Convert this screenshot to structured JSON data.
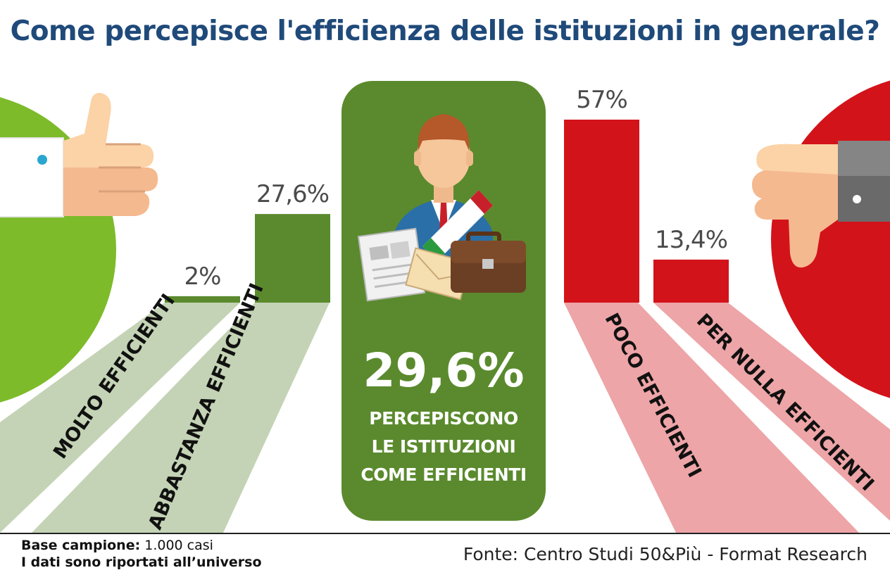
{
  "title": "Come percepisce l'efficienza delle istituzioni in generale?",
  "center": {
    "value": "29,6%",
    "line1": "PERCEPISCONO",
    "line2": "LE ISTITUZIONI",
    "line3": "COME EFFICIENTI"
  },
  "colors": {
    "green_dark": "#5a8a2d",
    "green_light": "#7dbb2a",
    "green_band": "#c4d3b5",
    "red": "#d3131a",
    "red_band": "#eda5a7",
    "title_blue": "#1f4a7a"
  },
  "chart_data": {
    "type": "bar",
    "title": "Come percepisce l'efficienza delle istituzioni in generale?",
    "categories": [
      "MOLTO EFFICIENTI",
      "ABBASTANZA EFFICIENTI",
      "POCO EFFICIENTI",
      "PER NULLA EFFICIENTI"
    ],
    "values": [
      2,
      27.6,
      57,
      13.4
    ],
    "value_labels": [
      "2%",
      "27,6%",
      "57%",
      "13,4%"
    ],
    "unit": "%",
    "ylim": [
      0,
      57
    ],
    "bar_colors": [
      "#5a8a2d",
      "#5a8a2d",
      "#d3131a",
      "#d3131a"
    ],
    "grid": false
  },
  "footer": {
    "base_label": "Base campione:",
    "base_value": "1.000 casi",
    "note": "I dati sono riportati all’universo",
    "source": "Fonte: Centro Studi 50&Più - Format Research"
  },
  "icons": [
    "thumbs-up-icon",
    "thumbs-down-icon",
    "official-figure-icon",
    "briefcase-icon",
    "newspaper-icon",
    "envelope-icon"
  ]
}
